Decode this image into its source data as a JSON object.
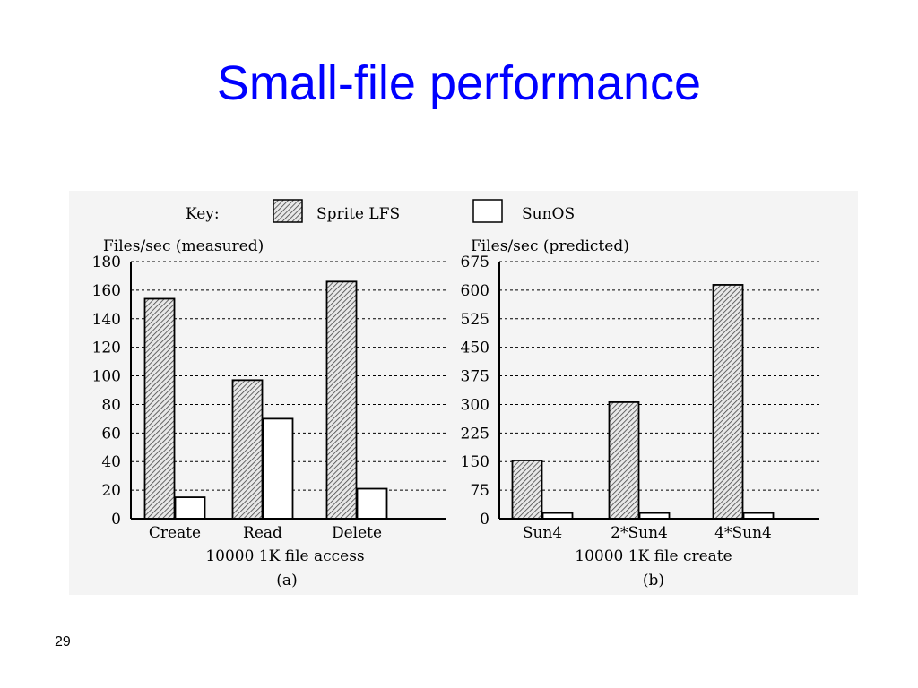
{
  "slide": {
    "title": "Small-file performance",
    "page_number": "29",
    "title_color": "#0000ff"
  },
  "legend": {
    "key_label": "Key:",
    "entries": [
      "Sprite LFS",
      "SunOS"
    ]
  },
  "chart_data": [
    {
      "type": "bar",
      "ylabel": "Files/sec (measured)",
      "xlabel": "10000 1K file access",
      "caption": "(a)",
      "ylim": [
        0,
        180
      ],
      "yticks": [
        0,
        20,
        40,
        60,
        80,
        100,
        120,
        140,
        160,
        180
      ],
      "grid": true,
      "categories": [
        "Create",
        "Read",
        "Delete"
      ],
      "series": [
        {
          "name": "Sprite LFS",
          "values": [
            154,
            97,
            166
          ],
          "pattern": "hatched"
        },
        {
          "name": "SunOS",
          "values": [
            15,
            70,
            21
          ],
          "pattern": "hollow"
        }
      ]
    },
    {
      "type": "bar",
      "ylabel": "Files/sec (predicted)",
      "xlabel": "10000 1K file create",
      "caption": "(b)",
      "ylim": [
        0,
        675
      ],
      "yticks": [
        0,
        75,
        150,
        225,
        300,
        375,
        450,
        525,
        600,
        675
      ],
      "grid": true,
      "categories": [
        "Sun4",
        "2*Sun4",
        "4*Sun4"
      ],
      "series": [
        {
          "name": "Sprite LFS",
          "values": [
            153,
            306,
            614
          ],
          "pattern": "hatched"
        },
        {
          "name": "SunOS",
          "values": [
            15,
            15,
            15
          ],
          "pattern": "hollow"
        }
      ]
    }
  ]
}
